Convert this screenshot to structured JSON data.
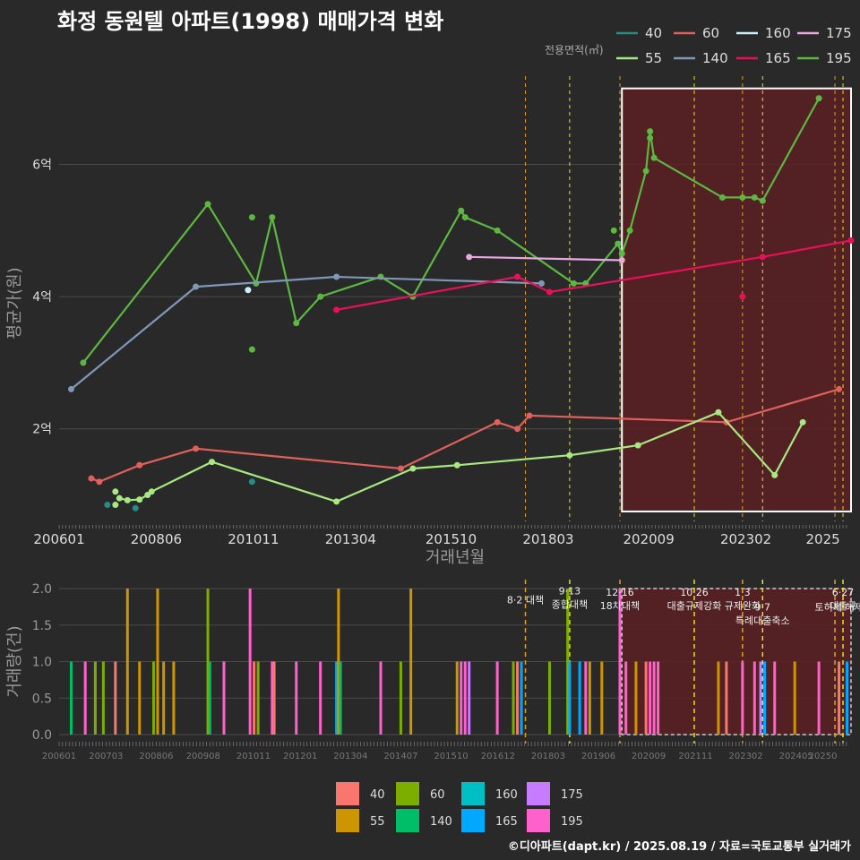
{
  "title": "화정 동원텔 아파트(1998) 매매가격 변화",
  "footer": "©디아파트(dapt.kr) / 2025.08.19 / 자료=국토교통부 실거래가",
  "colors": {
    "background": "#292929",
    "grid": "#4a4a4a",
    "text": "#dddddd",
    "policy_line": "#e6e600",
    "policy_line_orange": "#e0a020",
    "highlight_fill": "#5a1f22",
    "highlight_border": "#ffffff"
  },
  "chart_data": [
    {
      "type": "line",
      "ylabel": "평균가(원)",
      "xlabel": "거래년월",
      "x_ticks": [
        "200601",
        "200806",
        "201011",
        "201304",
        "201510",
        "201803",
        "202009",
        "202302",
        "2025"
      ],
      "y_ticks": [
        "2억",
        "4억",
        "6억"
      ],
      "y_tick_values": [
        2,
        4,
        6
      ],
      "ylim": [
        0.6,
        7.2
      ],
      "xlim": [
        2006.0,
        2025.7
      ],
      "legend_title": "전용면적(㎡)",
      "legend_position": "top-right",
      "legend": [
        {
          "name": "40",
          "color": "#2a8a86"
        },
        {
          "name": "60",
          "color": "#e0605c"
        },
        {
          "name": "160",
          "color": "#c8f0ff"
        },
        {
          "name": "175",
          "color": "#e8a8e0"
        },
        {
          "name": "55",
          "color": "#a8e880"
        },
        {
          "name": "140",
          "color": "#8098b8"
        },
        {
          "name": "165",
          "color": "#e8105a"
        },
        {
          "name": "195",
          "color": "#5cb840"
        }
      ],
      "series": [
        {
          "name": "195",
          "color": "#5cb840",
          "line": true,
          "points": [
            [
              2006.6,
              3.0
            ],
            [
              2009.7,
              5.4
            ],
            [
              2010.9,
              4.2
            ],
            [
              2011.3,
              5.2
            ],
            [
              2011.9,
              3.6
            ],
            [
              2012.5,
              4.0
            ],
            [
              2014.0,
              4.3
            ],
            [
              2014.8,
              4.0
            ],
            [
              2016.0,
              5.3
            ],
            [
              2016.1,
              5.2
            ],
            [
              2016.9,
              5.0
            ],
            [
              2018.8,
              4.2
            ],
            [
              2019.1,
              4.2
            ],
            [
              2019.9,
              4.8
            ],
            [
              2020.0,
              4.65
            ],
            [
              2020.2,
              5.0
            ],
            [
              2020.6,
              5.9
            ],
            [
              2020.7,
              6.5
            ],
            [
              2020.8,
              6.1
            ],
            [
              2022.5,
              5.5
            ],
            [
              2023.0,
              5.5
            ],
            [
              2023.3,
              5.5
            ],
            [
              2023.5,
              5.45
            ],
            [
              2024.9,
              7.0
            ]
          ],
          "loose_points": [
            [
              2010.8,
              5.2
            ],
            [
              2010.8,
              3.2
            ],
            [
              2019.8,
              5.0
            ],
            [
              2020.7,
              6.4
            ]
          ]
        },
        {
          "name": "140",
          "color": "#8098b8",
          "line": true,
          "points": [
            [
              2006.3,
              2.6
            ],
            [
              2009.4,
              4.15
            ],
            [
              2012.9,
              4.3
            ],
            [
              2018.0,
              4.2
            ]
          ]
        },
        {
          "name": "175",
          "color": "#e8a8e0",
          "line": true,
          "points": [
            [
              2016.2,
              4.6
            ],
            [
              2020.0,
              4.55
            ]
          ]
        },
        {
          "name": "165",
          "color": "#e8105a",
          "line": true,
          "points": [
            [
              2012.9,
              3.8
            ],
            [
              2017.4,
              4.3
            ],
            [
              2018.2,
              4.07
            ],
            [
              2023.5,
              4.6
            ],
            [
              2025.7,
              4.85
            ]
          ],
          "loose_points": [
            [
              2023.0,
              4.0
            ]
          ]
        },
        {
          "name": "60",
          "color": "#e0605c",
          "line": true,
          "points": [
            [
              2006.8,
              1.25
            ],
            [
              2007.0,
              1.2
            ],
            [
              2008.0,
              1.45
            ],
            [
              2009.4,
              1.7
            ],
            [
              2014.5,
              1.4
            ],
            [
              2016.9,
              2.1
            ],
            [
              2017.4,
              2.0
            ],
            [
              2017.7,
              2.2
            ],
            [
              2022.6,
              2.1
            ],
            [
              2025.4,
              2.6
            ]
          ]
        },
        {
          "name": "55",
          "color": "#a8e880",
          "line": true,
          "points": [
            [
              2007.5,
              0.95
            ],
            [
              2007.7,
              0.92
            ],
            [
              2008.0,
              0.93
            ],
            [
              2008.2,
              1.0
            ],
            [
              2008.3,
              1.05
            ],
            [
              2009.8,
              1.5
            ],
            [
              2012.9,
              0.9
            ],
            [
              2014.8,
              1.4
            ],
            [
              2015.9,
              1.45
            ],
            [
              2018.7,
              1.6
            ],
            [
              2020.4,
              1.75
            ],
            [
              2022.4,
              2.25
            ],
            [
              2023.8,
              1.3
            ],
            [
              2024.5,
              2.1
            ]
          ],
          "loose_points": [
            [
              2007.4,
              1.05
            ],
            [
              2007.4,
              0.85
            ]
          ]
        },
        {
          "name": "40",
          "color": "#2a8a86",
          "line": false,
          "points": [
            [
              2007.2,
              0.85
            ],
            [
              2007.9,
              0.8
            ],
            [
              2010.8,
              1.2
            ]
          ]
        },
        {
          "name": "160",
          "color": "#c8f0ff",
          "line": false,
          "points": [
            [
              2010.7,
              4.1
            ]
          ]
        }
      ],
      "highlight_region": {
        "x": [
          2020.0,
          2025.7
        ],
        "y": [
          0.75,
          7.15
        ]
      },
      "policy_lines": [
        2017.6,
        2018.7,
        2019.95,
        2021.8,
        2023.0,
        2023.5,
        2025.3,
        2025.5
      ]
    },
    {
      "type": "bar",
      "ylabel": "거래량(건)",
      "ylim": [
        0,
        2.0
      ],
      "y_ticks": [
        "0.0",
        "0.5",
        "1.0",
        "1.5",
        "2.0"
      ],
      "y_tick_values": [
        0,
        0.5,
        1.0,
        1.5,
        2.0
      ],
      "x_ticks": [
        "200601",
        "200703",
        "200806",
        "200908",
        "201011",
        "201201",
        "201304",
        "201407",
        "201510",
        "201612",
        "201803",
        "201906",
        "202009",
        "202111",
        "202302",
        "202405",
        "20250"
      ],
      "legend_position": "bottom",
      "legend": [
        {
          "name": "40",
          "color": "#f8766d"
        },
        {
          "name": "55",
          "color": "#cd9600"
        },
        {
          "name": "60",
          "color": "#7cae00"
        },
        {
          "name": "140",
          "color": "#00be67"
        },
        {
          "name": "160",
          "color": "#00bfc4"
        },
        {
          "name": "165",
          "color": "#00a9ff"
        },
        {
          "name": "175",
          "color": "#c77cff"
        },
        {
          "name": "195",
          "color": "#ff61cc"
        }
      ],
      "bars": [
        {
          "x": 2006.3,
          "value": 1,
          "series": "140"
        },
        {
          "x": 2006.65,
          "value": 1,
          "series": "195"
        },
        {
          "x": 2006.9,
          "value": 1,
          "series": "60"
        },
        {
          "x": 2007.1,
          "value": 1,
          "series": "60"
        },
        {
          "x": 2007.4,
          "value": 1,
          "series": "40"
        },
        {
          "x": 2007.7,
          "value": 2,
          "series": "55"
        },
        {
          "x": 2008.0,
          "value": 1,
          "series": "55"
        },
        {
          "x": 2008.35,
          "value": 1,
          "series": "60"
        },
        {
          "x": 2008.45,
          "value": 2,
          "series": "55"
        },
        {
          "x": 2008.6,
          "value": 1,
          "series": "55"
        },
        {
          "x": 2008.85,
          "value": 1,
          "series": "55"
        },
        {
          "x": 2009.7,
          "value": 2,
          "series": "60"
        },
        {
          "x": 2009.75,
          "value": 1,
          "series": "140"
        },
        {
          "x": 2010.1,
          "value": 1,
          "series": "195"
        },
        {
          "x": 2010.75,
          "value": 2,
          "series": "195"
        },
        {
          "x": 2010.85,
          "value": 1,
          "series": "40"
        },
        {
          "x": 2010.95,
          "value": 1,
          "series": "60"
        },
        {
          "x": 2011.3,
          "value": 1,
          "series": "195"
        },
        {
          "x": 2011.35,
          "value": 1,
          "series": "40"
        },
        {
          "x": 2011.9,
          "value": 1,
          "series": "195"
        },
        {
          "x": 2012.5,
          "value": 1,
          "series": "195"
        },
        {
          "x": 2012.9,
          "value": 1,
          "series": "165"
        },
        {
          "x": 2012.95,
          "value": 2,
          "series": "55"
        },
        {
          "x": 2013.0,
          "value": 1,
          "series": "140"
        },
        {
          "x": 2014.0,
          "value": 1,
          "series": "195"
        },
        {
          "x": 2014.5,
          "value": 1,
          "series": "60"
        },
        {
          "x": 2014.75,
          "value": 2,
          "series": "55"
        },
        {
          "x": 2015.9,
          "value": 1,
          "series": "55"
        },
        {
          "x": 2016.0,
          "value": 1,
          "series": "195"
        },
        {
          "x": 2016.1,
          "value": 1,
          "series": "195"
        },
        {
          "x": 2016.2,
          "value": 1,
          "series": "175"
        },
        {
          "x": 2016.9,
          "value": 1,
          "series": "195"
        },
        {
          "x": 2017.3,
          "value": 1,
          "series": "60"
        },
        {
          "x": 2017.4,
          "value": 1,
          "series": "40"
        },
        {
          "x": 2017.5,
          "value": 1,
          "series": "165"
        },
        {
          "x": 2018.2,
          "value": 1,
          "series": "60"
        },
        {
          "x": 2018.65,
          "value": 2,
          "series": "60"
        },
        {
          "x": 2018.7,
          "value": 1,
          "series": "165"
        },
        {
          "x": 2018.95,
          "value": 1,
          "series": "165"
        },
        {
          "x": 2019.1,
          "value": 1,
          "series": "195"
        },
        {
          "x": 2019.2,
          "value": 1,
          "series": "55"
        },
        {
          "x": 2019.5,
          "value": 1,
          "series": "55"
        },
        {
          "x": 2019.95,
          "value": 2,
          "series": "195"
        },
        {
          "x": 2020.1,
          "value": 1,
          "series": "195"
        },
        {
          "x": 2020.35,
          "value": 1,
          "series": "55"
        },
        {
          "x": 2020.6,
          "value": 1,
          "series": "40"
        },
        {
          "x": 2020.7,
          "value": 1,
          "series": "195"
        },
        {
          "x": 2020.8,
          "value": 1,
          "series": "195"
        },
        {
          "x": 2020.9,
          "value": 1,
          "series": "195"
        },
        {
          "x": 2022.4,
          "value": 1,
          "series": "55"
        },
        {
          "x": 2022.6,
          "value": 1,
          "series": "40"
        },
        {
          "x": 2023.0,
          "value": 1,
          "series": "195"
        },
        {
          "x": 2023.3,
          "value": 1,
          "series": "195"
        },
        {
          "x": 2023.45,
          "value": 1,
          "series": "175"
        },
        {
          "x": 2023.55,
          "value": 1,
          "series": "165"
        },
        {
          "x": 2023.8,
          "value": 1,
          "series": "195"
        },
        {
          "x": 2024.3,
          "value": 1,
          "series": "55"
        },
        {
          "x": 2024.9,
          "value": 1,
          "series": "195"
        },
        {
          "x": 2025.4,
          "value": 1,
          "series": "40"
        },
        {
          "x": 2025.6,
          "value": 1,
          "series": "165"
        }
      ],
      "highlight_region": {
        "x": [
          2020.0,
          2025.7
        ],
        "y": [
          0,
          2.0
        ]
      },
      "policy_lines": [
        2017.6,
        2018.7,
        2019.95,
        2021.8,
        2023.0,
        2023.5,
        2025.3,
        2025.5
      ],
      "annotations": [
        {
          "x": 2017.6,
          "y": 1.8,
          "lines": [
            "8·2 대책"
          ]
        },
        {
          "x": 2018.7,
          "y": 1.92,
          "lines": [
            "9·13",
            "종합대책"
          ]
        },
        {
          "x": 2019.95,
          "y": 1.9,
          "lines": [
            "12·16",
            "18차대책"
          ]
        },
        {
          "x": 2021.8,
          "y": 1.9,
          "lines": [
            "10·26",
            "대출규제강화"
          ]
        },
        {
          "x": 2023.0,
          "y": 1.9,
          "lines": [
            "1·3",
            "규제완화"
          ]
        },
        {
          "x": 2023.5,
          "y": 1.7,
          "lines": [
            "9·7",
            "특례대출축소"
          ]
        },
        {
          "x": 2025.4,
          "y": 1.7,
          "lines": [
            "토허제 해제"
          ]
        },
        {
          "x": 2025.5,
          "y": 1.9,
          "lines": [
            "6·27",
            "대출규"
          ]
        }
      ]
    }
  ]
}
